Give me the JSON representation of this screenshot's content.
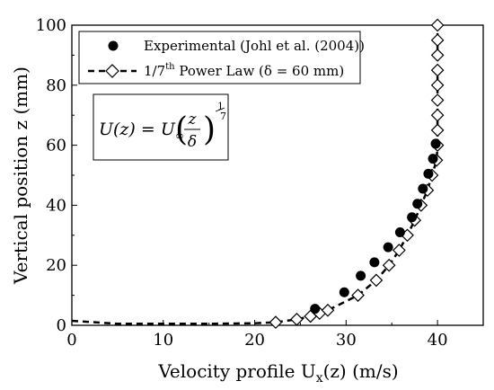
{
  "chart_data": {
    "type": "scatter",
    "xlabel": "Velocity profile U",
    "xlabel_sub": "x",
    "xlabel_suffix": "(z) (m/s)",
    "ylabel": "Vertical position z (mm)",
    "xlim": [
      0,
      45
    ],
    "ylim": [
      0,
      100
    ],
    "xticks": [
      0,
      10,
      20,
      30,
      40
    ],
    "yticks": [
      0,
      20,
      40,
      60,
      80,
      100
    ],
    "grid": false,
    "legend_position": "top-left",
    "series": [
      {
        "name": "Experimental (Johl et al. (2004))",
        "marker": "filled-circle",
        "line": "none",
        "color": "#000000",
        "points": [
          [
            26.6,
            5.5
          ],
          [
            29.8,
            11
          ],
          [
            31.6,
            16.5
          ],
          [
            33.1,
            21
          ],
          [
            34.6,
            26
          ],
          [
            35.9,
            31
          ],
          [
            37.2,
            36
          ],
          [
            37.8,
            40.5
          ],
          [
            38.4,
            45.5
          ],
          [
            39.0,
            50.5
          ],
          [
            39.5,
            55.5
          ],
          [
            39.8,
            60.5
          ]
        ]
      },
      {
        "name": "1/7th Power Law (δ = 60 mm)",
        "name_parts": {
          "lead": "1/7",
          "sup": "th",
          "tail": " Power Law (δ = 60 mm)"
        },
        "marker": "open-diamond",
        "line": "dashed",
        "color": "#000000",
        "points": [
          [
            22.3,
            1
          ],
          [
            24.6,
            2
          ],
          [
            26.1,
            3
          ],
          [
            27.1,
            4
          ],
          [
            28.0,
            5
          ],
          [
            31.3,
            10
          ],
          [
            33.3,
            15
          ],
          [
            34.7,
            20
          ],
          [
            35.8,
            25
          ],
          [
            36.7,
            30
          ],
          [
            37.5,
            35
          ],
          [
            38.2,
            40
          ],
          [
            38.9,
            45
          ],
          [
            39.4,
            50
          ],
          [
            39.9,
            55
          ],
          [
            40.0,
            60
          ],
          [
            40.0,
            65
          ],
          [
            40.0,
            70
          ],
          [
            40.0,
            75
          ],
          [
            40.0,
            80
          ],
          [
            40.0,
            85
          ],
          [
            40.0,
            90
          ],
          [
            40.0,
            95
          ],
          [
            40.0,
            100
          ]
        ],
        "dashed_curve": [
          [
            0,
            1.5
          ],
          [
            5,
            0.5
          ],
          [
            10,
            0.5
          ],
          [
            15,
            0.5
          ],
          [
            20,
            0.7
          ],
          [
            22.3,
            1
          ],
          [
            24.6,
            2
          ],
          [
            26.1,
            3
          ],
          [
            27.1,
            4
          ],
          [
            28.0,
            5
          ],
          [
            31.3,
            10
          ],
          [
            33.3,
            15
          ],
          [
            34.7,
            20
          ],
          [
            35.8,
            25
          ],
          [
            36.7,
            30
          ],
          [
            37.5,
            35
          ],
          [
            38.2,
            40
          ],
          [
            38.9,
            45
          ],
          [
            39.4,
            50
          ],
          [
            39.9,
            55
          ],
          [
            40.0,
            60
          ],
          [
            40.0,
            100
          ]
        ]
      }
    ],
    "equation": {
      "lhs": "U(z) = U",
      "sub": "∞",
      "frac_num": "z",
      "frac_den": "δ",
      "exp_num": "1",
      "exp_den": "7"
    }
  }
}
